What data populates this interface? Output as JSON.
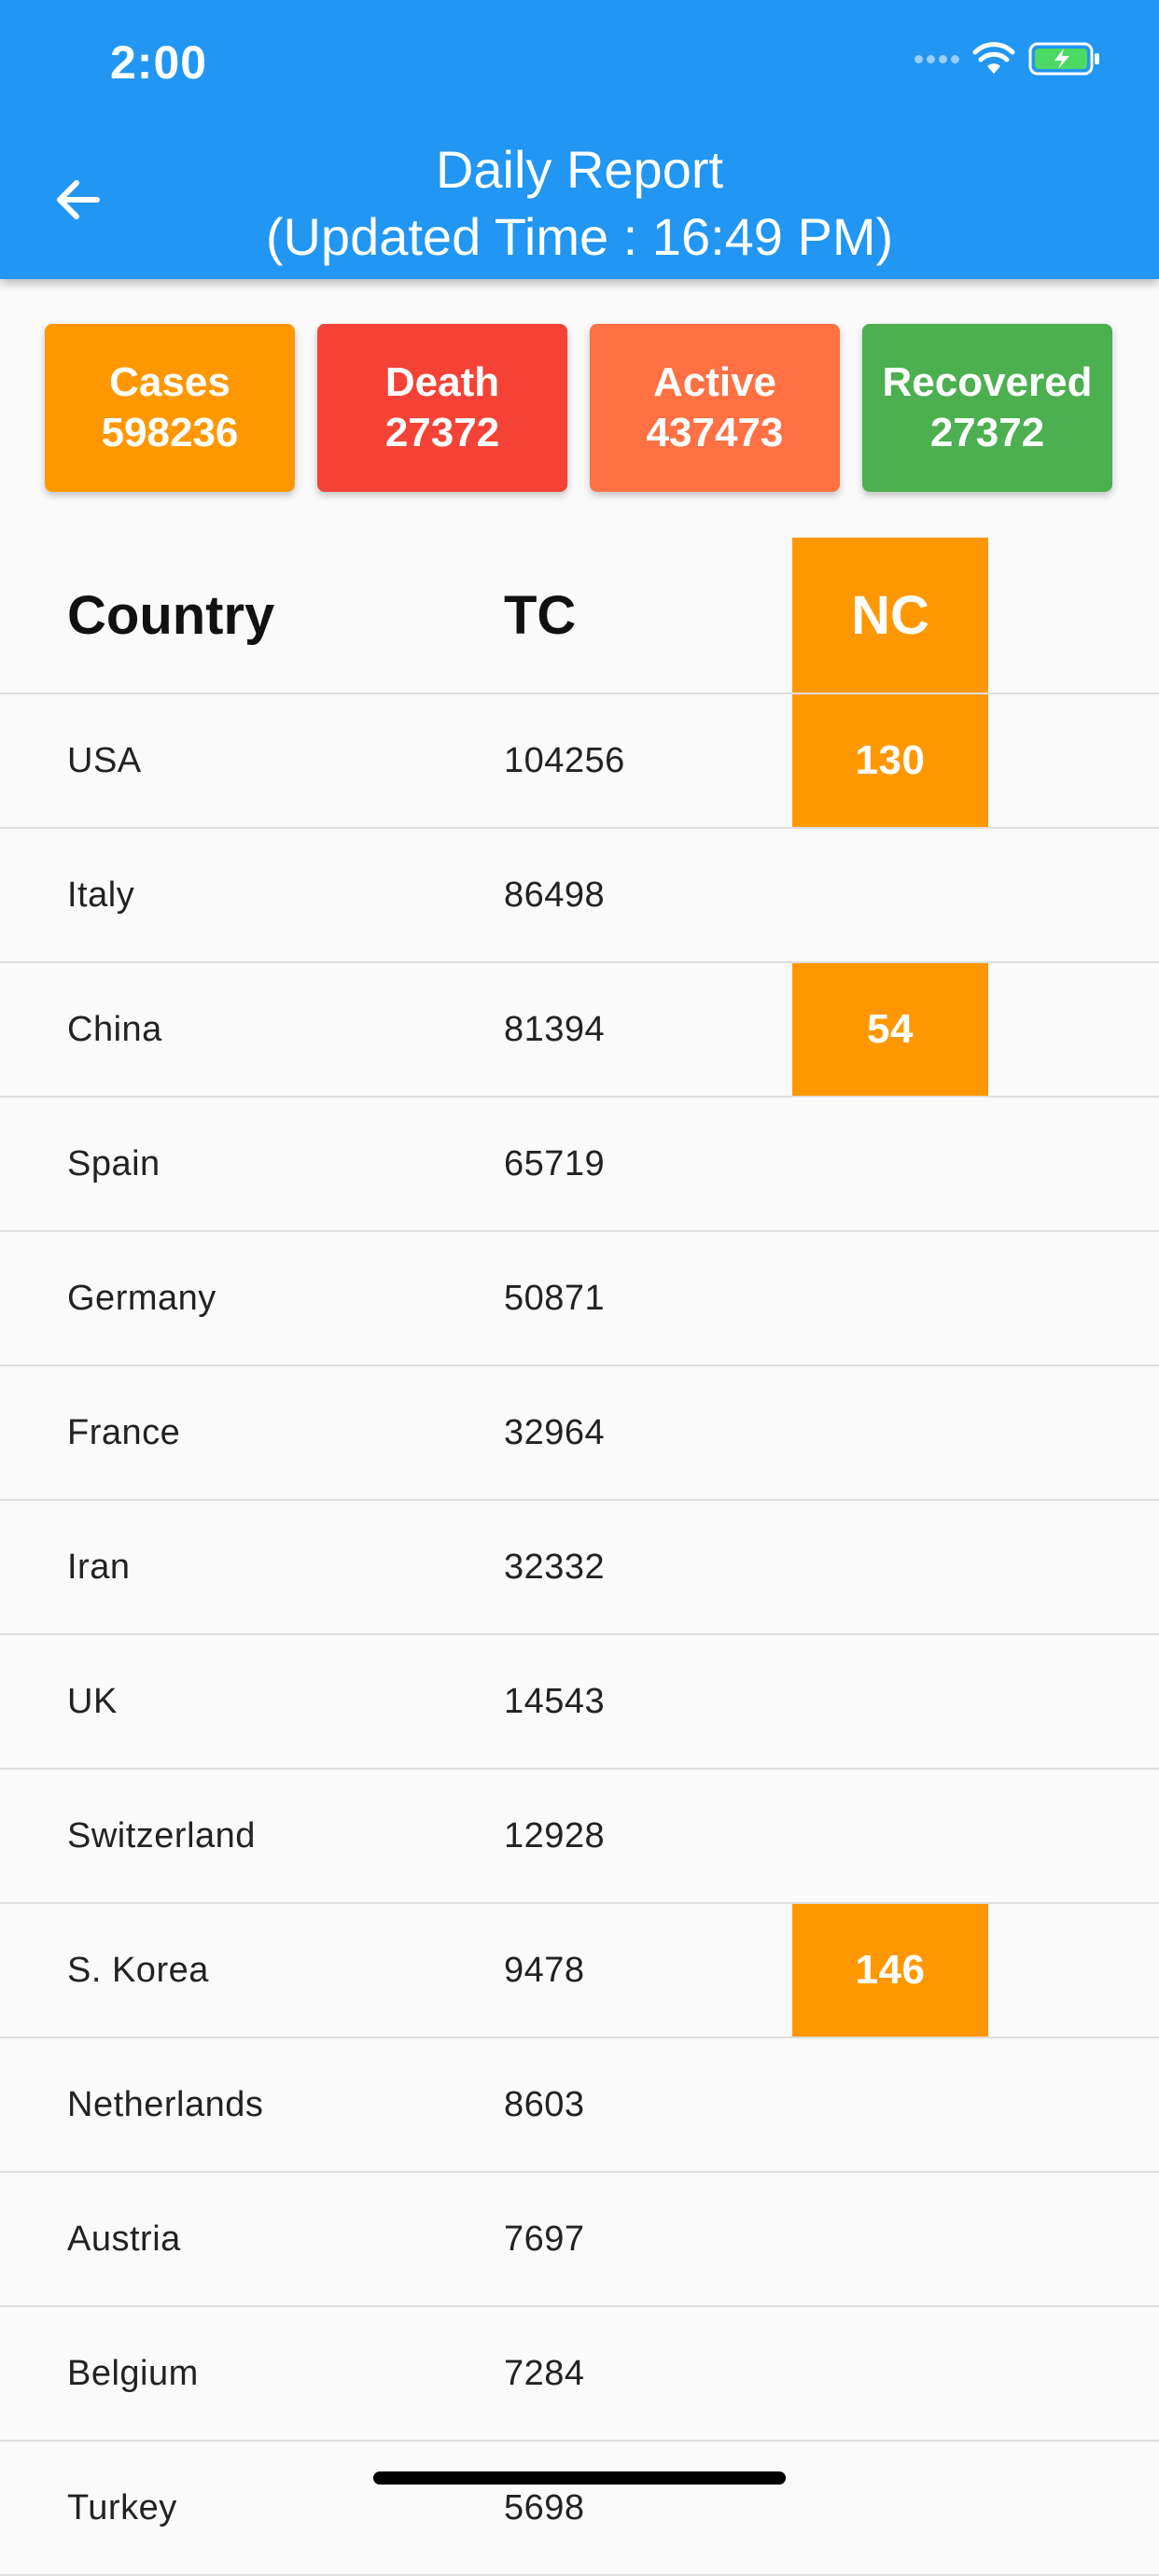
{
  "status_bar": {
    "time": "2:00",
    "icons": [
      "cellular-dots-icon",
      "wifi-icon",
      "battery-charging-icon"
    ]
  },
  "appbar": {
    "title_line1": "Daily Report",
    "title_line2": "(Updated Time : 16:49 PM)",
    "back_icon": "arrow-left-icon",
    "color": "#2196f3"
  },
  "summary": [
    {
      "label": "Cases",
      "value": "598236",
      "color": "#ff9800"
    },
    {
      "label": "Death",
      "value": "27372",
      "color": "#f44336"
    },
    {
      "label": "Active",
      "value": "437473",
      "color": "#ff7043"
    },
    {
      "label": "Recovered",
      "value": "27372",
      "color": "#4caf50"
    }
  ],
  "table": {
    "headers": {
      "country": "Country",
      "tc": "TC",
      "nc": "NC"
    },
    "highlight_color": "#ff9800",
    "rows": [
      {
        "country": "USA",
        "tc": "104256",
        "nc": "130"
      },
      {
        "country": "Italy",
        "tc": "86498",
        "nc": ""
      },
      {
        "country": "China",
        "tc": "81394",
        "nc": "54"
      },
      {
        "country": "Spain",
        "tc": "65719",
        "nc": ""
      },
      {
        "country": "Germany",
        "tc": "50871",
        "nc": ""
      },
      {
        "country": "France",
        "tc": "32964",
        "nc": ""
      },
      {
        "country": "Iran",
        "tc": "32332",
        "nc": ""
      },
      {
        "country": "UK",
        "tc": "14543",
        "nc": ""
      },
      {
        "country": "Switzerland",
        "tc": "12928",
        "nc": ""
      },
      {
        "country": "S. Korea",
        "tc": "9478",
        "nc": "146"
      },
      {
        "country": "Netherlands",
        "tc": "8603",
        "nc": ""
      },
      {
        "country": "Austria",
        "tc": "7697",
        "nc": ""
      },
      {
        "country": "Belgium",
        "tc": "7284",
        "nc": ""
      },
      {
        "country": "Turkey",
        "tc": "5698",
        "nc": ""
      }
    ]
  }
}
